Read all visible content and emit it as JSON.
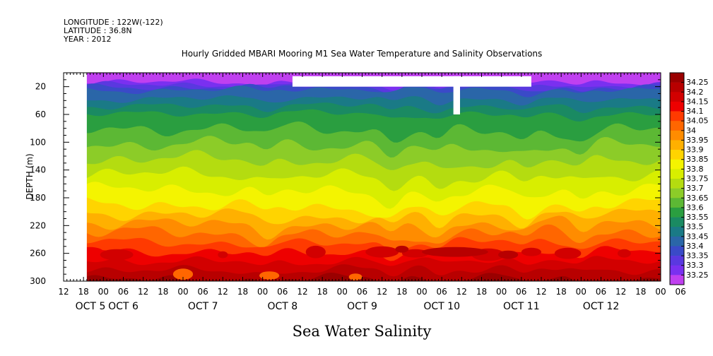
{
  "header": {
    "longitude": "LONGITUDE : 122W(-122)",
    "latitude": "LATITUDE : 36.8N",
    "year": "YEAR : 2012"
  },
  "chart_data": {
    "type": "heatmap",
    "title": "Hourly Gridded MBARI Mooring M1 Sea Water Temperature and Salinity Observations",
    "variable_label": "Sea Water Salinity",
    "ylabel": "DEPTH (m)",
    "y_reversed": true,
    "ylim": [
      300,
      0
    ],
    "y_ticks": [
      20,
      60,
      100,
      140,
      180,
      220,
      260,
      300
    ],
    "x_range_hours": [
      0,
      180
    ],
    "x_tick_labels": [
      "12",
      "18",
      "00",
      "06",
      "12",
      "18",
      "00",
      "06",
      "12",
      "18",
      "00",
      "06",
      "12",
      "18",
      "00",
      "06",
      "12",
      "18",
      "00",
      "06",
      "12",
      "18",
      "00",
      "06",
      "12",
      "18",
      "00",
      "06",
      "12",
      "18",
      "00",
      "06"
    ],
    "x_day_labels": [
      "OCT  5",
      "OCT  6",
      "OCT  7",
      "OCT  8",
      "OCT  9",
      "OCT 10",
      "OCT 11",
      "OCT 12"
    ],
    "colorbar_levels": [
      "34.25",
      "34.2",
      "34.15",
      "34.1",
      "34.05",
      "34",
      "33.95",
      "33.9",
      "33.85",
      "33.8",
      "33.75",
      "33.7",
      "33.65",
      "33.6",
      "33.55",
      "33.5",
      "33.45",
      "33.4",
      "33.35",
      "33.3",
      "33.25"
    ],
    "colorbar_colors": [
      "#9a0000",
      "#b80000",
      "#d20000",
      "#ee0000",
      "#ff3a00",
      "#ff6600",
      "#ff8c00",
      "#ffb000",
      "#ffd400",
      "#f4f400",
      "#d8ee00",
      "#b4dc10",
      "#8ccc28",
      "#5cb834",
      "#2a9e40",
      "#1a8a62",
      "#1a7a86",
      "#2a66a8",
      "#3a4ac8",
      "#5a38e0",
      "#7a30f0",
      "#c040f0"
    ],
    "no_data_color": "#ffffff"
  }
}
